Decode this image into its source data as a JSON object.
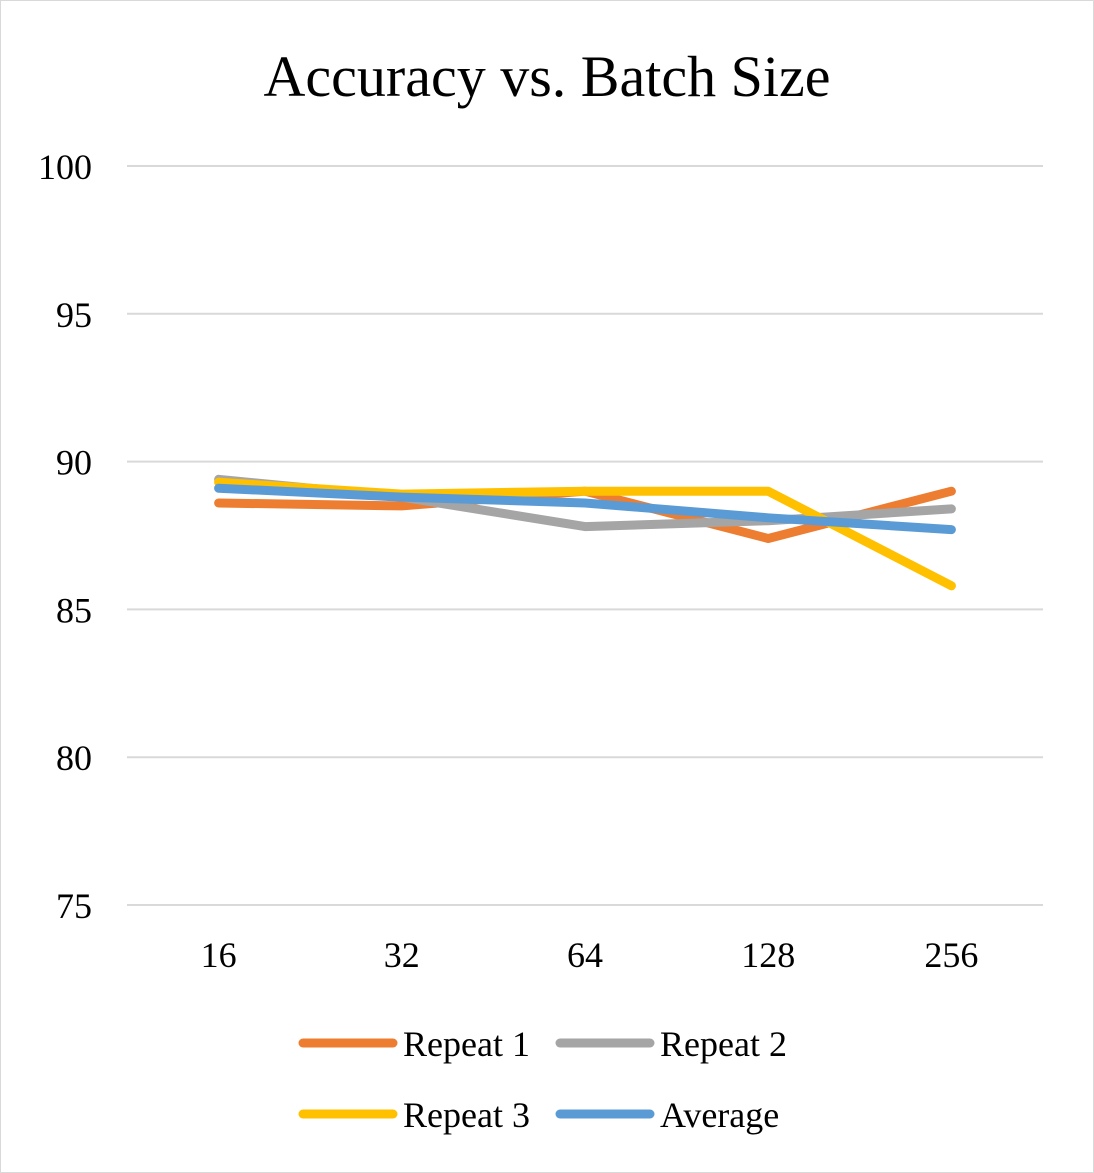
{
  "chart_data": {
    "type": "line",
    "title": "Accuracy vs. Batch Size",
    "xlabel": "",
    "ylabel": "",
    "categories": [
      "16",
      "32",
      "64",
      "128",
      "256"
    ],
    "ylim": [
      75,
      100
    ],
    "yticks": [
      "100",
      "95",
      "90",
      "85",
      "80",
      "75"
    ],
    "grid": true,
    "legend_position": "bottom",
    "series": [
      {
        "name": "Repeat 1",
        "color": "#ED7D31",
        "values": [
          88.6,
          88.5,
          89.0,
          87.4,
          89.0
        ]
      },
      {
        "name": "Repeat 2",
        "color": "#A5A5A5",
        "values": [
          89.4,
          88.8,
          87.8,
          88.0,
          88.4
        ]
      },
      {
        "name": "Repeat 3",
        "color": "#FFC000",
        "values": [
          89.3,
          88.9,
          89.0,
          89.0,
          85.8
        ]
      },
      {
        "name": "Average",
        "color": "#5B9BD5",
        "values": [
          89.1,
          88.8,
          88.6,
          88.1,
          87.7
        ]
      }
    ]
  }
}
